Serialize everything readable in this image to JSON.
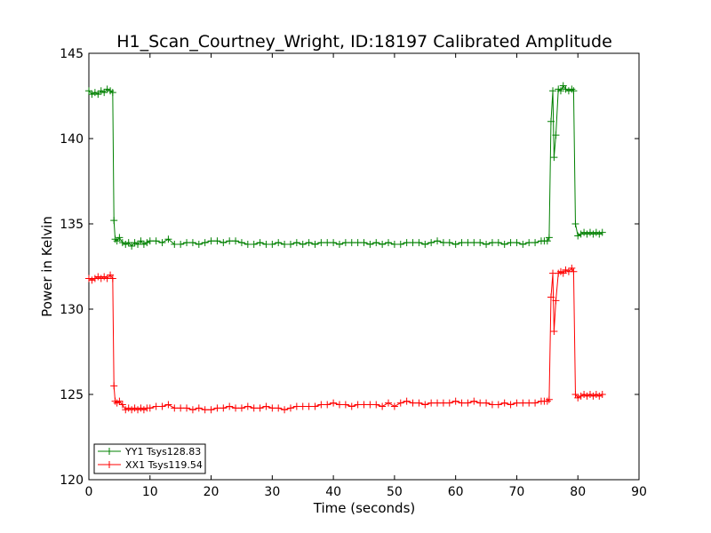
{
  "chart_data": {
    "type": "line",
    "title": "H1_Scan_Courtney_Wright, ID:18197 Calibrated Amplitude",
    "xlabel": "Time (seconds)",
    "ylabel": "Power in Kelvin",
    "xlim": [
      0,
      90
    ],
    "ylim": [
      120,
      145
    ],
    "xticks": [
      0,
      10,
      20,
      30,
      40,
      50,
      60,
      70,
      80,
      90
    ],
    "yticks": [
      120,
      125,
      130,
      135,
      140,
      145
    ],
    "grid": false,
    "legend_position": "lower-left",
    "marker": "+",
    "series": [
      {
        "name": "YY1 Tsys128.83",
        "color": "#008000",
        "x": [
          0,
          0.5,
          1,
          1.5,
          2,
          2.5,
          3,
          3.5,
          3.9,
          4.1,
          4.3,
          4.6,
          5,
          5.5,
          6,
          6.5,
          7,
          7.5,
          8,
          8.5,
          9,
          9.5,
          10,
          11,
          12,
          13,
          14,
          15,
          16,
          17,
          18,
          19,
          20,
          21,
          22,
          23,
          24,
          25,
          26,
          27,
          28,
          29,
          30,
          31,
          32,
          33,
          34,
          35,
          36,
          37,
          38,
          39,
          40,
          41,
          42,
          43,
          44,
          45,
          46,
          47,
          48,
          49,
          50,
          51,
          52,
          53,
          54,
          55,
          56,
          57,
          58,
          59,
          60,
          61,
          62,
          63,
          64,
          65,
          66,
          67,
          68,
          69,
          70,
          71,
          72,
          73,
          74,
          74.5,
          75,
          75.3,
          75.6,
          75.9,
          76.1,
          76.4,
          76.8,
          77.2,
          77.6,
          78,
          78.5,
          79,
          79.3,
          79.6,
          80,
          80.5,
          81,
          81.5,
          82,
          82.5,
          83,
          83.5,
          84
        ],
        "y": [
          142.8,
          142.6,
          142.7,
          142.6,
          142.8,
          142.7,
          142.9,
          142.8,
          142.7,
          135.2,
          134.1,
          134.0,
          134.2,
          133.9,
          133.8,
          133.9,
          133.7,
          133.9,
          133.8,
          134.0,
          133.8,
          133.9,
          134.0,
          134.0,
          133.9,
          134.1,
          133.8,
          133.8,
          133.9,
          133.9,
          133.8,
          133.9,
          134.0,
          134.0,
          133.9,
          134.0,
          134.0,
          133.9,
          133.8,
          133.8,
          133.9,
          133.8,
          133.8,
          133.9,
          133.8,
          133.8,
          133.9,
          133.8,
          133.9,
          133.8,
          133.9,
          133.9,
          133.9,
          133.8,
          133.9,
          133.9,
          133.9,
          133.9,
          133.8,
          133.9,
          133.8,
          133.9,
          133.8,
          133.8,
          133.9,
          133.9,
          133.9,
          133.8,
          133.9,
          134.0,
          133.9,
          133.9,
          133.8,
          133.9,
          133.9,
          133.9,
          133.9,
          133.8,
          133.9,
          133.9,
          133.8,
          133.9,
          133.9,
          133.8,
          133.9,
          133.9,
          134.0,
          134.0,
          134.0,
          134.2,
          141.0,
          142.8,
          138.9,
          140.2,
          142.9,
          142.8,
          143.1,
          142.9,
          142.8,
          142.9,
          142.8,
          135.0,
          134.3,
          134.4,
          134.5,
          134.4,
          134.5,
          134.4,
          134.5,
          134.4,
          134.5
        ]
      },
      {
        "name": "XX1 Tsys119.54",
        "color": "#ff0000",
        "x": [
          0,
          0.5,
          1,
          1.5,
          2,
          2.5,
          3,
          3.5,
          3.9,
          4.1,
          4.3,
          4.6,
          5,
          5.5,
          6,
          6.5,
          7,
          7.5,
          8,
          8.5,
          9,
          9.5,
          10,
          11,
          12,
          13,
          14,
          15,
          16,
          17,
          18,
          19,
          20,
          21,
          22,
          23,
          24,
          25,
          26,
          27,
          28,
          29,
          30,
          31,
          32,
          33,
          34,
          35,
          36,
          37,
          38,
          39,
          40,
          41,
          42,
          43,
          44,
          45,
          46,
          47,
          48,
          49,
          50,
          51,
          52,
          53,
          54,
          55,
          56,
          57,
          58,
          59,
          60,
          61,
          62,
          63,
          64,
          65,
          66,
          67,
          68,
          69,
          70,
          71,
          72,
          73,
          74,
          74.5,
          75,
          75.3,
          75.6,
          75.9,
          76.1,
          76.4,
          76.8,
          77.2,
          77.6,
          78,
          78.5,
          79,
          79.3,
          79.6,
          80,
          80.5,
          81,
          81.5,
          82,
          82.5,
          83,
          83.5,
          84
        ],
        "y": [
          131.8,
          131.7,
          131.8,
          131.9,
          131.8,
          131.9,
          131.8,
          132.0,
          131.8,
          125.5,
          124.6,
          124.5,
          124.6,
          124.4,
          124.1,
          124.2,
          124.1,
          124.2,
          124.1,
          124.2,
          124.1,
          124.2,
          124.2,
          124.3,
          124.3,
          124.4,
          124.2,
          124.2,
          124.2,
          124.1,
          124.2,
          124.1,
          124.1,
          124.2,
          124.2,
          124.3,
          124.2,
          124.2,
          124.3,
          124.2,
          124.2,
          124.3,
          124.2,
          124.2,
          124.1,
          124.2,
          124.3,
          124.3,
          124.3,
          124.3,
          124.4,
          124.4,
          124.5,
          124.4,
          124.4,
          124.3,
          124.4,
          124.4,
          124.4,
          124.4,
          124.3,
          124.5,
          124.3,
          124.5,
          124.6,
          124.5,
          124.5,
          124.4,
          124.5,
          124.5,
          124.5,
          124.5,
          124.6,
          124.5,
          124.5,
          124.6,
          124.5,
          124.5,
          124.4,
          124.4,
          124.5,
          124.4,
          124.5,
          124.5,
          124.5,
          124.5,
          124.6,
          124.6,
          124.6,
          124.7,
          130.7,
          132.1,
          128.7,
          130.5,
          132.1,
          132.2,
          132.1,
          132.3,
          132.2,
          132.4,
          132.2,
          125.0,
          124.8,
          124.9,
          125.0,
          124.9,
          125.0,
          124.9,
          125.0,
          124.9,
          125.0
        ]
      }
    ]
  }
}
